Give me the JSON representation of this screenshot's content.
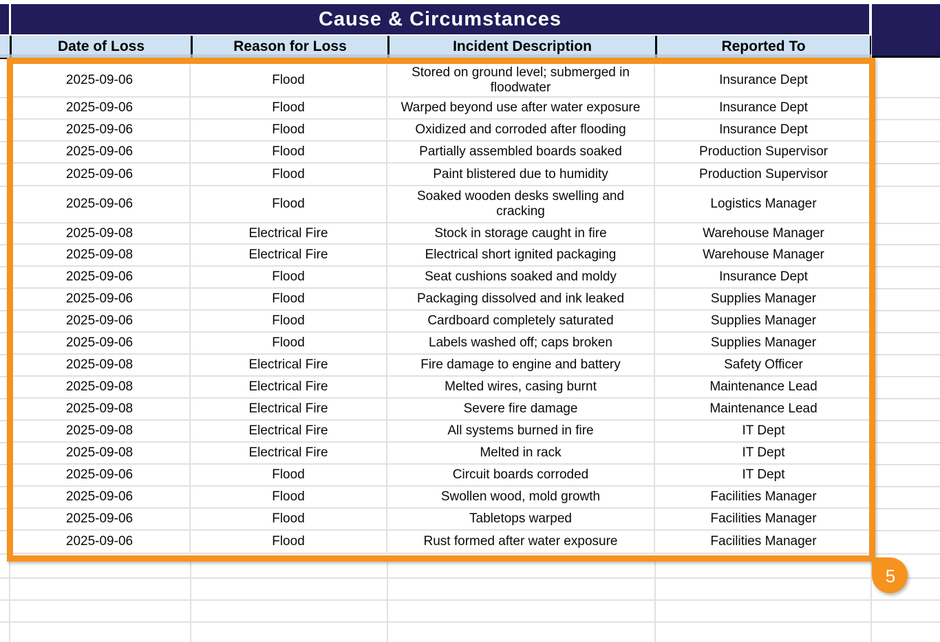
{
  "table": {
    "title": "Cause & Circumstances",
    "columns": [
      "Date of Loss",
      "Reason for Loss",
      "Incident Description",
      "Reported To"
    ],
    "rows": [
      {
        "date": "2025-09-06",
        "reason": "Flood",
        "description": "Stored on ground level; submerged in\nfloodwater",
        "reported_to": "Insurance Dept"
      },
      {
        "date": "2025-09-06",
        "reason": "Flood",
        "description": "Warped beyond use after water exposure",
        "reported_to": "Insurance Dept"
      },
      {
        "date": "2025-09-06",
        "reason": "Flood",
        "description": "Oxidized and corroded after flooding",
        "reported_to": "Insurance Dept"
      },
      {
        "date": "2025-09-06",
        "reason": "Flood",
        "description": "Partially assembled boards soaked",
        "reported_to": "Production Supervisor"
      },
      {
        "date": "2025-09-06",
        "reason": "Flood",
        "description": "Paint blistered due to humidity",
        "reported_to": "Production Supervisor"
      },
      {
        "date": "2025-09-06",
        "reason": "Flood",
        "description": "Soaked wooden desks swelling and\ncracking",
        "reported_to": "Logistics Manager"
      },
      {
        "date": "2025-09-08",
        "reason": "Electrical Fire",
        "description": "Stock in storage caught in fire",
        "reported_to": "Warehouse Manager"
      },
      {
        "date": "2025-09-08",
        "reason": "Electrical Fire",
        "description": "Electrical short ignited packaging",
        "reported_to": "Warehouse Manager"
      },
      {
        "date": "2025-09-06",
        "reason": "Flood",
        "description": "Seat cushions soaked and moldy",
        "reported_to": "Insurance Dept"
      },
      {
        "date": "2025-09-06",
        "reason": "Flood",
        "description": "Packaging dissolved and ink leaked",
        "reported_to": "Supplies Manager"
      },
      {
        "date": "2025-09-06",
        "reason": "Flood",
        "description": "Cardboard completely saturated",
        "reported_to": "Supplies Manager"
      },
      {
        "date": "2025-09-06",
        "reason": "Flood",
        "description": "Labels washed off; caps broken",
        "reported_to": "Supplies Manager"
      },
      {
        "date": "2025-09-08",
        "reason": "Electrical Fire",
        "description": "Fire damage to engine and battery",
        "reported_to": "Safety Officer"
      },
      {
        "date": "2025-09-08",
        "reason": "Electrical Fire",
        "description": "Melted wires, casing burnt",
        "reported_to": "Maintenance Lead"
      },
      {
        "date": "2025-09-08",
        "reason": "Electrical Fire",
        "description": "Severe fire damage",
        "reported_to": "Maintenance Lead"
      },
      {
        "date": "2025-09-08",
        "reason": "Electrical Fire",
        "description": "All systems burned in fire",
        "reported_to": "IT Dept"
      },
      {
        "date": "2025-09-08",
        "reason": "Electrical Fire",
        "description": "Melted in rack",
        "reported_to": "IT Dept"
      },
      {
        "date": "2025-09-06",
        "reason": "Flood",
        "description": "Circuit boards corroded",
        "reported_to": "IT Dept"
      },
      {
        "date": "2025-09-06",
        "reason": "Flood",
        "description": "Swollen wood, mold growth",
        "reported_to": "Facilities Manager"
      },
      {
        "date": "2025-09-06",
        "reason": "Flood",
        "description": "Tabletops warped",
        "reported_to": "Facilities Manager"
      },
      {
        "date": "2025-09-06",
        "reason": "Flood",
        "description": "Rust formed after water exposure",
        "reported_to": "Facilities Manager"
      }
    ]
  },
  "selection": {
    "badge_label": "5"
  },
  "colors": {
    "navy": "#221c5a",
    "header_blue": "#cfe2f3",
    "selection_orange": "#f6921e",
    "gridline": "#e1e1e1"
  }
}
